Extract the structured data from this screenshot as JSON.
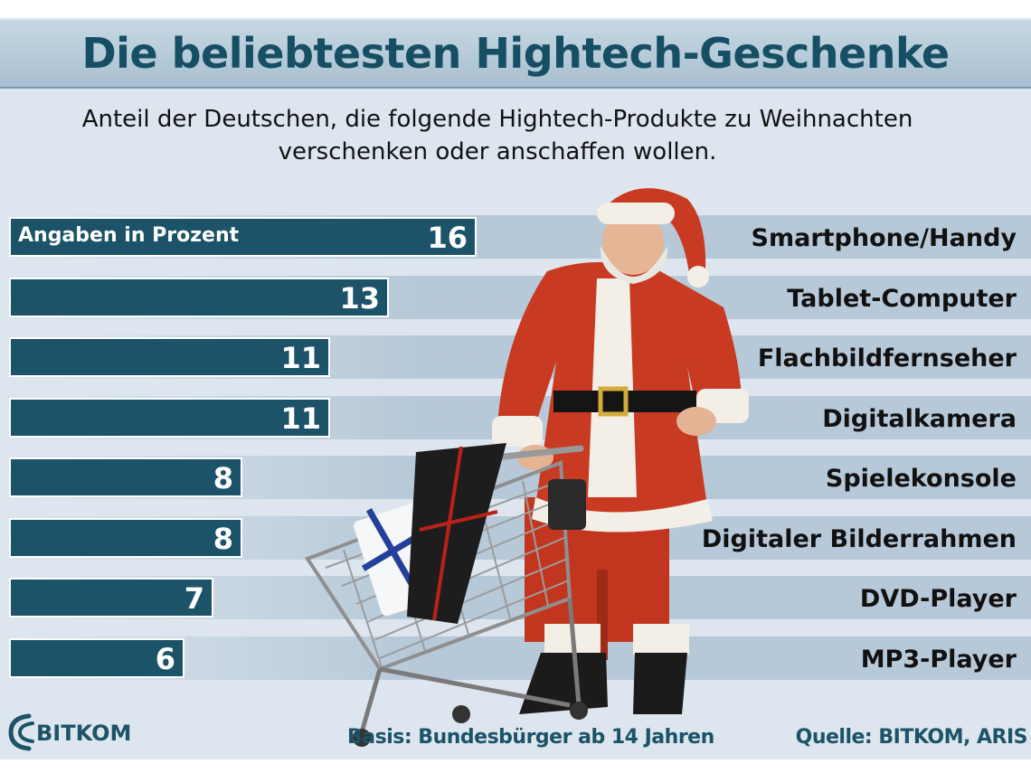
{
  "header": {
    "title": "Die beliebtesten Hightech-Geschenke",
    "subtitle_line1": "Anteil der Deutschen, die folgende Hightech-Produkte zu Weihnachten",
    "subtitle_line2": "verschenken oder anschaffen wollen."
  },
  "chart_data": {
    "type": "bar",
    "orientation": "horizontal",
    "title": "Die beliebtesten Hightech-Geschenke",
    "subtitle": "Anteil der Deutschen, die folgende Hightech-Produkte zu Weihnachten verschenken oder anschaffen wollen.",
    "unit_note": "Angaben in Prozent",
    "categories": [
      "Smartphone/Handy",
      "Tablet-Computer",
      "Flachbildfernseher",
      "Digitalkamera",
      "Spielekonsole",
      "Digitaler Bilderrahmen",
      "DVD-Player",
      "MP3-Player"
    ],
    "values": [
      16,
      13,
      11,
      11,
      8,
      8,
      7,
      6
    ],
    "labels": [
      "16",
      "13",
      "11",
      "11",
      "8",
      "8",
      "7",
      "6"
    ],
    "bar_color": "#1c5368",
    "grid": false,
    "legend": "none"
  },
  "footer": {
    "logo": "BITKOM",
    "basis": "Basis: Bundesbürger ab 14 Jahren",
    "source": "Quelle: BITKOM, ARIS"
  },
  "colors": {
    "accent": "#164f63",
    "background": "#dde6ee",
    "title_band": "#b4c8d6"
  },
  "illustration": "santa-with-shopping-cart-icon"
}
